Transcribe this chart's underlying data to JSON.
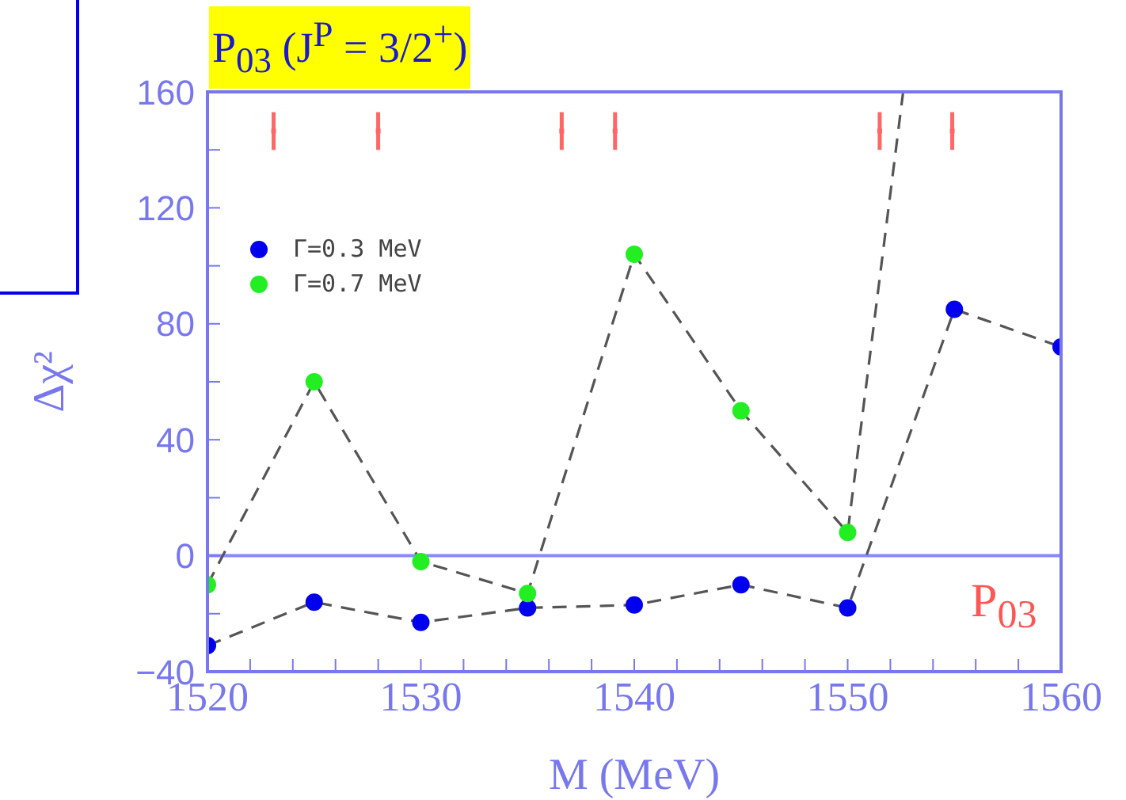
{
  "chart_data": {
    "type": "scatter",
    "title": "P$_{03}$ (J$^{P}$ = 3/2$^{+}$)",
    "xlabel": "M (MeV)",
    "ylabel": "Δχ²",
    "xlim": [
      1520,
      1560
    ],
    "ylim": [
      -40,
      160
    ],
    "xticks": [
      1520,
      {
        "value": 1522,
        "label": null
      },
      {
        "value": 1524,
        "label": null
      },
      {
        "value": 1526,
        "label": null
      },
      {
        "value": 1528,
        "label": null
      },
      1530,
      {
        "value": 1532,
        "label": null
      },
      {
        "value": 1534,
        "label": null
      },
      {
        "value": 1536,
        "label": null
      },
      {
        "value": 1538,
        "label": null
      },
      1540,
      {
        "value": 1542,
        "label": null
      },
      {
        "value": 1544,
        "label": null
      },
      {
        "value": 1546,
        "label": null
      },
      {
        "value": 1548,
        "label": null
      },
      1550,
      {
        "value": 1552,
        "label": null
      },
      {
        "value": 1554,
        "label": null
      },
      {
        "value": 1556,
        "label": null
      },
      {
        "value": 1558,
        "label": null
      },
      1560
    ],
    "yticks": [
      -40,
      {
        "value": -20,
        "label": null
      },
      0,
      {
        "value": 20,
        "label": null
      },
      40,
      {
        "value": 60,
        "label": null
      },
      80,
      {
        "value": 100,
        "label": null
      },
      120,
      {
        "value": 140,
        "label": null
      },
      160
    ],
    "marker": "circle",
    "legend": "top left",
    "x": [
      1520,
      1525,
      1530,
      1535,
      1540,
      1545,
      1550,
      1555,
      1560
    ],
    "series": [
      {
        "type": "line",
        "color": "#555555",
        "line_style": "dashed",
        "marker": "none",
        "x": [
          1520,
          1525,
          1530,
          1535,
          1540,
          1545,
          1550,
          1555,
          1560
        ],
        "values": [
          -31,
          -16,
          -23,
          -18,
          -17,
          -10,
          -18,
          85,
          72
        ]
      },
      {
        "type": "line",
        "color": "#555555",
        "line_style": "dashed",
        "marker": "none",
        "x": [
          1520,
          1525,
          1530,
          1535,
          1540,
          1545,
          1550,
          1552.6
        ],
        "values": [
          -10,
          60,
          -2,
          -13,
          104,
          50,
          8,
          160
        ]
      },
      {
        "name": "Γ=0.3 MeV",
        "color": "#0000ee",
        "values": [
          -31,
          -16,
          -23,
          -18,
          -17,
          -10,
          -18,
          85,
          72
        ]
      },
      {
        "name": "Γ=0.7 MeV",
        "color": "#22ee22",
        "x": [
          1520,
          1525,
          1530,
          1535,
          1540,
          1545,
          1550
        ],
        "values": [
          -10,
          60,
          -2,
          -13,
          104,
          50,
          8
        ]
      },
      {
        "marker": "square",
        "color": "#ff6666",
        "x": [
          1523.1,
          1528,
          1536.6,
          1539.1,
          1551.5,
          1554.9
        ],
        "values": [
          146.5,
          146.5,
          146.5,
          146.5,
          146.5,
          146.5
        ],
        "errors": [
          6.5,
          6.5,
          6.5,
          6.5,
          6.5,
          6.5
        ]
      }
    ],
    "ref_lines": [
      {
        "axis": "y",
        "value": 0,
        "color": "#8888ff"
      }
    ],
    "annotations": [
      "P$_{03}$"
    ]
  }
}
